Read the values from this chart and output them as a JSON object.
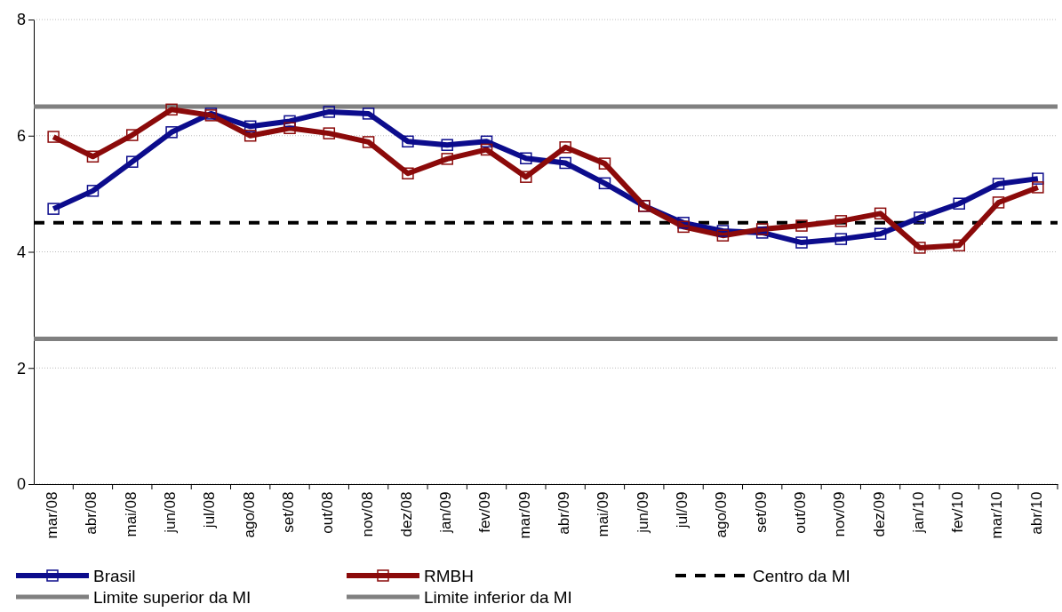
{
  "chart_data": {
    "type": "line",
    "categories": [
      "mar/08",
      "abr/08",
      "mai/08",
      "jun/08",
      "jul/08",
      "ago/08",
      "set/08",
      "out/08",
      "nov/08",
      "dez/08",
      "jan/09",
      "fev/09",
      "mar/09",
      "abr/09",
      "mai/09",
      "jun/09",
      "jul/09",
      "ago/09",
      "set/09",
      "out/09",
      "nov/09",
      "dez/09",
      "jan/10",
      "fev/10",
      "mar/10",
      "abr/10"
    ],
    "series": [
      {
        "name": "Brasil",
        "color": "#0c0c8c",
        "values": [
          4.74,
          5.05,
          5.55,
          6.06,
          6.38,
          6.16,
          6.25,
          6.41,
          6.38,
          5.9,
          5.84,
          5.9,
          5.61,
          5.53,
          5.18,
          4.79,
          4.5,
          4.36,
          4.33,
          4.16,
          4.22,
          4.31,
          4.59,
          4.83,
          5.17,
          5.26
        ]
      },
      {
        "name": "RMBH",
        "color": "#8b0a0a",
        "values": [
          5.98,
          5.64,
          6.01,
          6.45,
          6.35,
          6.0,
          6.13,
          6.04,
          5.89,
          5.35,
          5.6,
          5.76,
          5.29,
          5.8,
          5.52,
          4.79,
          4.43,
          4.28,
          4.39,
          4.45,
          4.53,
          4.66,
          4.07,
          4.11,
          4.85,
          5.11
        ]
      }
    ],
    "ylim": [
      0,
      8
    ],
    "yticks": [
      0,
      2,
      4,
      6,
      8
    ],
    "grid": "y",
    "marker": "square",
    "legend": "bottom",
    "ref_lines": [
      {
        "axis": "y",
        "value": 4.5,
        "label": "Centro da MI",
        "color": "#000000",
        "line_style": "dashed"
      },
      {
        "axis": "y",
        "value": 6.5,
        "label": "Limite superior da MI",
        "color": "#808080",
        "line_style": "solid"
      },
      {
        "axis": "y",
        "value": 2.5,
        "label": "Limite inferior da MI",
        "color": "#808080",
        "line_style": "solid"
      }
    ]
  }
}
